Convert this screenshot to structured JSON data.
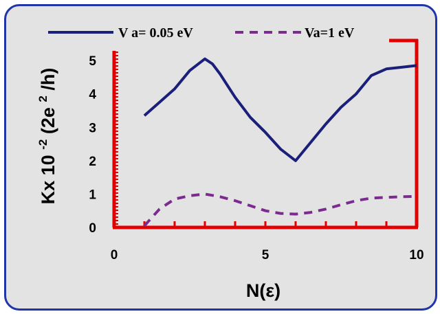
{
  "chart_data": {
    "type": "line",
    "title": "",
    "xlabel": "N(ε)",
    "ylabel_parts": {
      "prefix": "Kx 10",
      "exp1": "-2",
      "mid": "(2e",
      "exp2": "2",
      "suffix": " /h)"
    },
    "xlim": [
      0,
      10
    ],
    "ylim": [
      0,
      5.6
    ],
    "xticks": [
      0,
      5,
      10
    ],
    "yticks": [
      0,
      1,
      2,
      3,
      4,
      5
    ],
    "legend_position": "top",
    "grid": false,
    "series": [
      {
        "name": "V a= 0.05 eV",
        "color": "#1a1f7a",
        "style": "solid",
        "x": [
          1,
          1.5,
          2,
          2.5,
          3,
          3.25,
          3.5,
          4,
          4.5,
          5,
          5.5,
          6,
          6.5,
          7,
          7.5,
          8,
          8.5,
          9,
          9.5,
          10
        ],
        "y": [
          3.35,
          3.75,
          4.15,
          4.7,
          5.05,
          4.9,
          4.6,
          3.9,
          3.3,
          2.85,
          2.35,
          2.0,
          2.55,
          3.1,
          3.6,
          4.0,
          4.55,
          4.75,
          4.8,
          4.85
        ]
      },
      {
        "name": "Va=1 eV",
        "color": "#7b2a8e",
        "style": "dashed",
        "x": [
          1,
          1.5,
          2,
          2.5,
          3,
          3.5,
          4,
          4.5,
          5,
          5.5,
          6,
          6.5,
          7,
          7.5,
          8,
          8.5,
          9,
          9.5,
          10
        ],
        "y": [
          0.05,
          0.55,
          0.85,
          0.95,
          1.0,
          0.92,
          0.8,
          0.65,
          0.5,
          0.42,
          0.4,
          0.45,
          0.55,
          0.68,
          0.8,
          0.88,
          0.9,
          0.92,
          0.93
        ]
      }
    ]
  },
  "colors": {
    "frame": "#e00000",
    "panel_border": "#1f35a8",
    "panel_bg": "#e3e3e3"
  }
}
